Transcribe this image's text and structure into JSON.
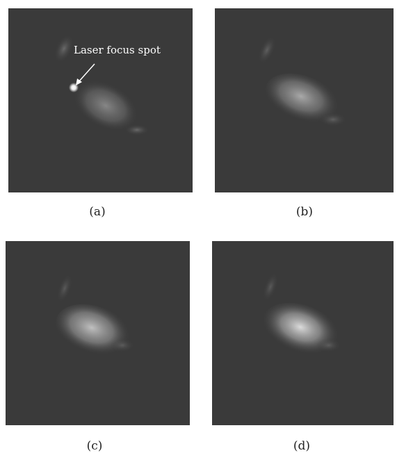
{
  "panels": [
    {
      "id": "a",
      "caption": "(a)",
      "annotation": "Laser focus spot",
      "laser_spot_visible": true,
      "cell_brightness": 0.35
    },
    {
      "id": "b",
      "caption": "(b)",
      "laser_spot_visible": false,
      "cell_brightness": 0.55
    },
    {
      "id": "c",
      "caption": "(c)",
      "laser_spot_visible": false,
      "cell_brightness": 0.7
    },
    {
      "id": "d",
      "caption": "(d)",
      "laser_spot_visible": false,
      "cell_brightness": 0.85
    }
  ],
  "colors": {
    "background": "#3a3a3a",
    "fluorescence": "#ffffff",
    "arrow": "#ffffff"
  }
}
